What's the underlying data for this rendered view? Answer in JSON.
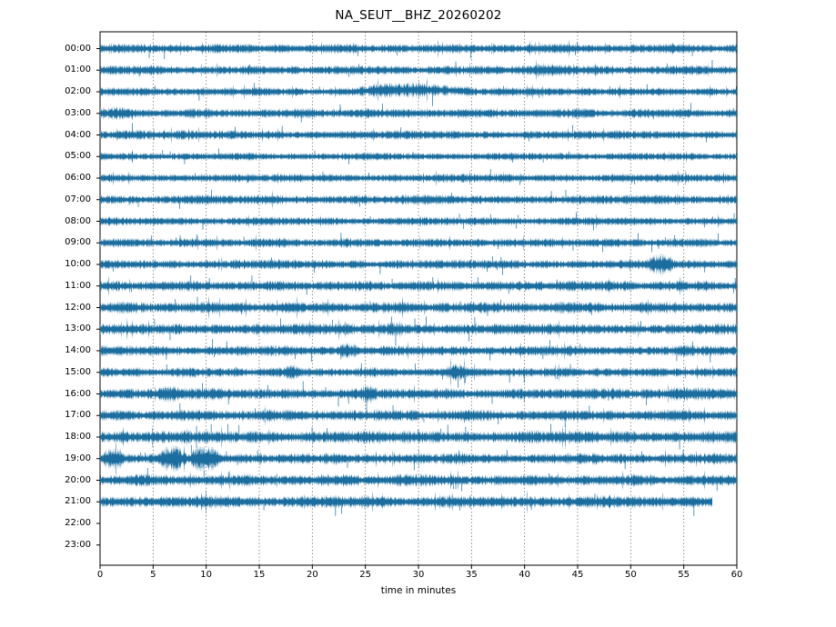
{
  "title": "NA_SEUT__BHZ_20260202",
  "chart_data": {
    "type": "line",
    "subtype": "helicorder-dayplot",
    "title": "NA_SEUT__BHZ_20260202",
    "xlabel": "time in minutes",
    "xlim": [
      0,
      60
    ],
    "x_ticks": [
      0,
      5,
      10,
      15,
      20,
      25,
      30,
      35,
      40,
      45,
      50,
      55,
      60
    ],
    "grid": "vertical-dotted",
    "legend": "none",
    "trace_color": "#1A6D9E",
    "axis_color": "#000000",
    "grid_color": "#555555",
    "rows": [
      {
        "label": "00:00",
        "amp": 3.8,
        "end": 60,
        "events": []
      },
      {
        "label": "01:00",
        "amp": 3.8,
        "end": 60,
        "events": [
          {
            "start": 38,
            "end": 45,
            "amp": 1.45
          }
        ]
      },
      {
        "label": "02:00",
        "amp": 3.4,
        "end": 60,
        "events": [
          {
            "start": 24,
            "end": 35,
            "amp": 1.8,
            "lift": 2
          }
        ]
      },
      {
        "label": "03:00",
        "amp": 3.8,
        "end": 60,
        "events": [
          {
            "start": 0,
            "end": 3,
            "amp": 1.4
          }
        ]
      },
      {
        "label": "04:00",
        "amp": 3.6,
        "end": 60,
        "events": [
          {
            "start": 1,
            "end": 4,
            "amp": 1.5
          }
        ]
      },
      {
        "label": "05:00",
        "amp": 3.0,
        "end": 60,
        "events": []
      },
      {
        "label": "06:00",
        "amp": 3.4,
        "end": 60,
        "events": []
      },
      {
        "label": "07:00",
        "amp": 3.8,
        "end": 60,
        "events": []
      },
      {
        "label": "08:00",
        "amp": 3.4,
        "end": 60,
        "events": []
      },
      {
        "label": "09:00",
        "amp": 3.6,
        "end": 60,
        "events": []
      },
      {
        "label": "10:00",
        "amp": 3.8,
        "end": 60,
        "events": [
          {
            "start": 51.5,
            "end": 54,
            "amp": 2.1
          }
        ]
      },
      {
        "label": "11:00",
        "amp": 4.2,
        "end": 60,
        "events": [
          {
            "start": 43,
            "end": 45,
            "amp": 1.5
          }
        ]
      },
      {
        "label": "12:00",
        "amp": 4.6,
        "end": 60,
        "events": []
      },
      {
        "label": "13:00",
        "amp": 4.6,
        "end": 60,
        "events": [
          {
            "start": 27,
            "end": 29,
            "amp": 1.5
          }
        ]
      },
      {
        "label": "14:00",
        "amp": 4.2,
        "end": 60,
        "events": [
          {
            "start": 22.5,
            "end": 24.5,
            "amp": 1.7
          }
        ]
      },
      {
        "label": "15:00",
        "amp": 3.8,
        "end": 60,
        "events": [
          {
            "start": 17.5,
            "end": 19,
            "amp": 1.7
          },
          {
            "start": 32.5,
            "end": 34.5,
            "amp": 1.8
          }
        ]
      },
      {
        "label": "16:00",
        "amp": 4.6,
        "end": 60,
        "events": [
          {
            "start": 5.5,
            "end": 7.5,
            "amp": 1.7
          },
          {
            "start": 24.5,
            "end": 26,
            "amp": 1.6
          },
          {
            "start": 53,
            "end": 60,
            "amp": 1.5
          }
        ]
      },
      {
        "label": "17:00",
        "amp": 4.6,
        "end": 60,
        "events": []
      },
      {
        "label": "18:00",
        "amp": 5.2,
        "end": 60,
        "events": []
      },
      {
        "label": "19:00",
        "amp": 4.3,
        "end": 60,
        "events": [
          {
            "start": 0,
            "end": 2.3,
            "amp": 2.3
          },
          {
            "start": 5.6,
            "end": 8.1,
            "amp": 2.5
          },
          {
            "start": 8.5,
            "end": 11.5,
            "amp": 2.5
          }
        ]
      },
      {
        "label": "20:00",
        "amp": 4.6,
        "end": 60,
        "events": [
          {
            "start": 27,
            "end": 31,
            "amp": 1.3
          }
        ]
      },
      {
        "label": "21:00",
        "amp": 5.0,
        "end": 57.7,
        "events": []
      },
      {
        "label": "22:00",
        "amp": 0,
        "end": 0,
        "events": []
      },
      {
        "label": "23:00",
        "amp": 0,
        "end": 0,
        "events": []
      }
    ]
  }
}
